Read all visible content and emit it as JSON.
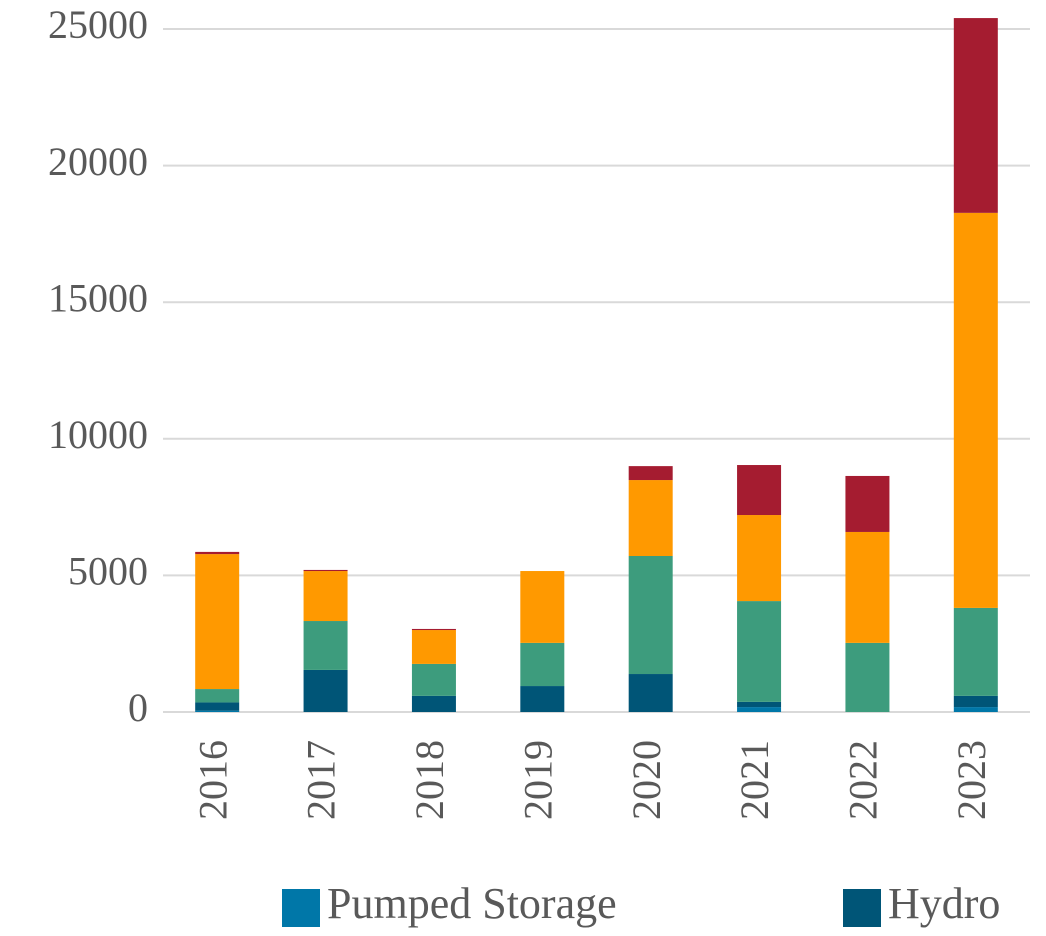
{
  "chart_data": {
    "type": "stacked_bar",
    "categories": [
      "2016",
      "2017",
      "2018",
      "2019",
      "2020",
      "2021",
      "2022",
      "2023"
    ],
    "series": [
      {
        "name": "Pumped Storage",
        "color": "#0077a8",
        "values": [
          50,
          0,
          0,
          0,
          0,
          180,
          0,
          180
        ]
      },
      {
        "name": "Hydro",
        "color": "#005577",
        "values": [
          300,
          1540,
          590,
          950,
          1390,
          190,
          0,
          410
        ]
      },
      {
        "color": "#3d9c7d",
        "values": [
          490,
          1790,
          1170,
          1580,
          4320,
          3690,
          2530,
          3220
        ]
      },
      {
        "color": "#ff9900",
        "values": [
          4940,
          1830,
          1240,
          2630,
          2780,
          3150,
          4060,
          14460
        ]
      },
      {
        "color": "#a51c30",
        "values": [
          80,
          40,
          40,
          0,
          510,
          1830,
          2050,
          7130
        ]
      }
    ],
    "ylim": [
      0,
      25000
    ],
    "yticks": [
      0,
      5000,
      10000,
      15000,
      20000,
      25000
    ],
    "grid": true
  }
}
